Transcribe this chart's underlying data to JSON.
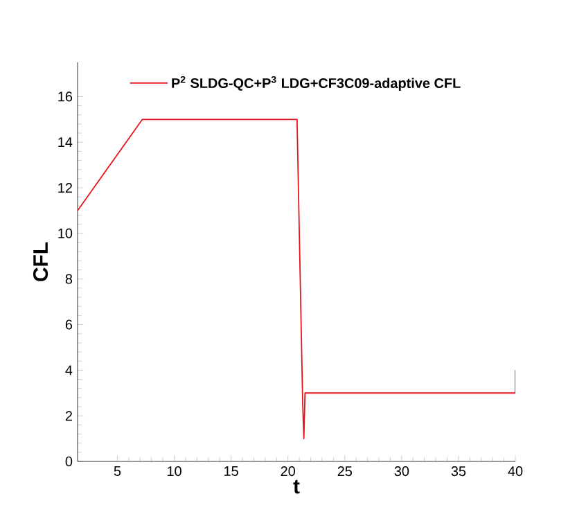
{
  "chart_data": {
    "type": "line",
    "xlabel": "t",
    "ylabel": "CFL",
    "xlim": [
      1.5,
      40
    ],
    "ylim": [
      0,
      17.5
    ],
    "xticks": [
      5,
      10,
      15,
      20,
      25,
      30,
      35,
      40
    ],
    "yticks": [
      0,
      2,
      4,
      6,
      8,
      10,
      12,
      14,
      16
    ],
    "legend": "top",
    "grid": false,
    "marker": "none",
    "line_style": "solid",
    "series": [
      {
        "name": "P$^{2}$ SLDG-QC+P$^{3}$ LDG+CF3C09-adaptive CFL",
        "color": "#e8141c",
        "x": [
          1.5,
          7.2,
          20.8,
          21.3,
          21.4,
          21.5,
          21.7,
          40,
          40
        ],
        "values": [
          11,
          15,
          15,
          2.5,
          1.0,
          3.0,
          3.0,
          3.0,
          4.0
        ]
      }
    ]
  }
}
